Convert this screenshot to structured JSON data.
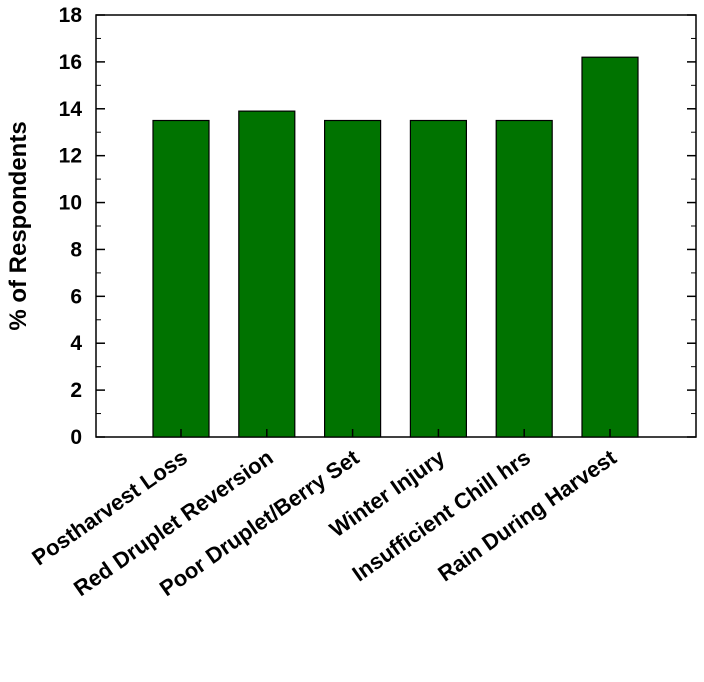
{
  "chart_data": {
    "type": "bar",
    "title": "",
    "xlabel": "",
    "ylabel": "% of Respondents",
    "ylim": [
      0,
      18
    ],
    "yticks": [
      0,
      2,
      4,
      6,
      8,
      10,
      12,
      14,
      16,
      18
    ],
    "categories": [
      "Postharvest Loss",
      "Red Druplet Reversion",
      "Poor Druplet/Berry Set",
      "Winter Injury",
      "Insufficient Chill hrs",
      "Rain During Harvest"
    ],
    "values": [
      13.5,
      13.9,
      13.5,
      13.5,
      13.5,
      16.2
    ],
    "bar_color": "#007300",
    "bar_edge_color": "#000000",
    "grid": false,
    "legend": "none"
  }
}
